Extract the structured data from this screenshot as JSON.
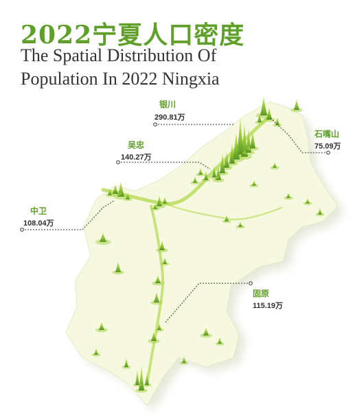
{
  "title_cn": "2022宁夏人口密度",
  "title_en_line1": "The Spatial Distribution Of",
  "title_en_line2": "Population In 2022 Ningxia",
  "colors": {
    "accent": "#5f9f2a",
    "terrain": "#f5f7dc",
    "spike": "#9ccf37"
  },
  "cities": [
    {
      "id": "yinchuan",
      "name": "银川",
      "population": "290.81万"
    },
    {
      "id": "shizuishan",
      "name": "石嘴山",
      "population": "75.09万"
    },
    {
      "id": "wuzhong",
      "name": "吴忠",
      "population": "140.27万"
    },
    {
      "id": "zhongwei",
      "name": "中卫",
      "population": "108.04万"
    },
    {
      "id": "guyuan",
      "name": "固原",
      "population": "115.19万"
    }
  ]
}
